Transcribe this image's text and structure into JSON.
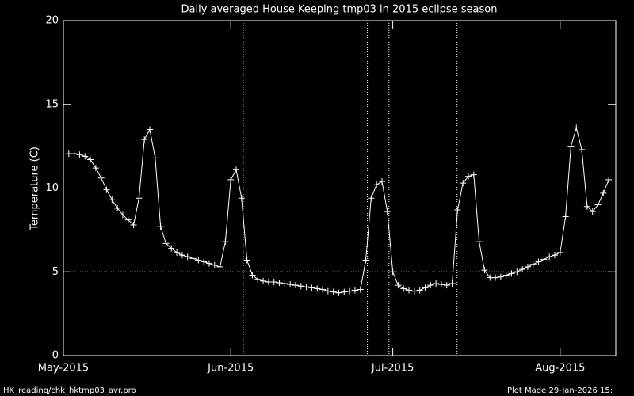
{
  "chart_data": {
    "type": "line",
    "title": "Daily averaged House Keeping tmp03 in 2015 eclipse season",
    "y_label": "Temperature (C)",
    "footer_left": "HK_reading/chk_hktmp03_avr.pro",
    "footer_right": "Plot Made 29-Jan-2026 15:",
    "color": "#ffffff",
    "marker": "+",
    "x": [
      1,
      2,
      3,
      4,
      5,
      6,
      7,
      8,
      9,
      10,
      11,
      12,
      13,
      14,
      15,
      16,
      17,
      18,
      19,
      20,
      21,
      22,
      23,
      24,
      25,
      26,
      27,
      28,
      29,
      30,
      31,
      32,
      33,
      34,
      35,
      36,
      37,
      38,
      39,
      40,
      41,
      42,
      43,
      44,
      45,
      46,
      47,
      48,
      49,
      50,
      51,
      52,
      53,
      54,
      55,
      56,
      57,
      58,
      59,
      60,
      61,
      62,
      63,
      64,
      65,
      66,
      67,
      68,
      69,
      70,
      71,
      72,
      73,
      74,
      75,
      76,
      77,
      78,
      79,
      80,
      81,
      82,
      83,
      84,
      85,
      86,
      87,
      88,
      89,
      90,
      91,
      92,
      93,
      94,
      95,
      96,
      97,
      98,
      99,
      100,
      101
    ],
    "values": [
      12.05,
      12.05,
      12.0,
      11.9,
      11.7,
      11.2,
      10.6,
      9.9,
      9.3,
      8.8,
      8.4,
      8.1,
      7.8,
      9.4,
      12.9,
      13.5,
      11.8,
      7.7,
      6.7,
      6.4,
      6.15,
      6.0,
      5.9,
      5.8,
      5.7,
      5.6,
      5.5,
      5.4,
      5.3,
      6.8,
      10.5,
      11.1,
      9.4,
      5.7,
      4.8,
      4.55,
      4.45,
      4.4,
      4.4,
      4.35,
      4.3,
      4.25,
      4.2,
      4.15,
      4.1,
      4.05,
      4.0,
      3.95,
      3.85,
      3.8,
      3.75,
      3.8,
      3.85,
      3.9,
      3.95,
      5.7,
      9.4,
      10.2,
      10.4,
      8.6,
      5.0,
      4.2,
      4.0,
      3.9,
      3.85,
      3.9,
      4.05,
      4.2,
      4.3,
      4.25,
      4.2,
      4.3,
      8.7,
      10.3,
      10.7,
      10.8,
      6.8,
      5.1,
      4.65,
      4.65,
      4.7,
      4.8,
      4.9,
      5.0,
      5.15,
      5.3,
      5.45,
      5.6,
      5.75,
      5.9,
      6.0,
      6.15,
      8.3,
      12.5,
      13.6,
      12.3,
      8.9,
      8.6,
      9.0,
      9.7,
      10.5
    ],
    "xlim": [
      0,
      102.3
    ],
    "xticks": [
      {
        "value": 0,
        "label": "May-2015"
      },
      {
        "value": 31,
        "label": "Jun-2015"
      },
      {
        "value": 61,
        "label": "Jul-2015"
      },
      {
        "value": 92,
        "label": "Aug-2015"
      }
    ],
    "ylim": [
      0,
      20
    ],
    "yticks": [
      0,
      5,
      10,
      15,
      20
    ],
    "vlines": [
      33.3,
      56.3,
      60.3,
      72.9
    ],
    "hline": 5
  }
}
